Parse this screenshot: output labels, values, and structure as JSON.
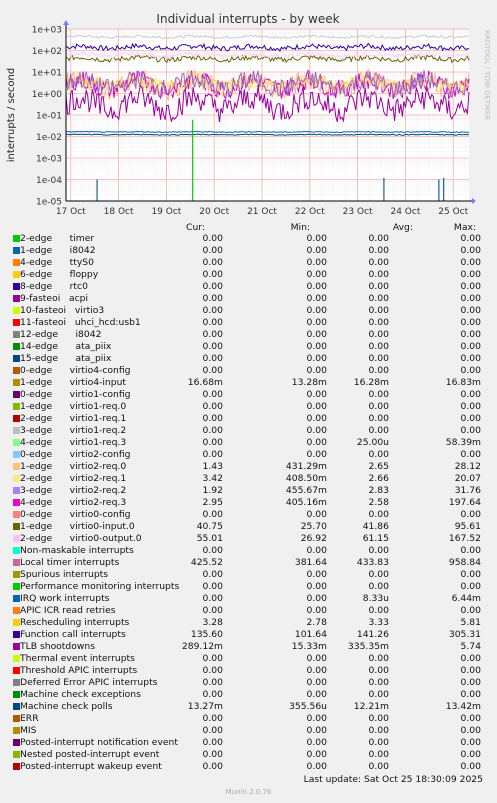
{
  "chart_data": {
    "type": "line",
    "title": "Individual interrupts - by week",
    "ylabel": "interrupts / second",
    "side_label": "RRDTOOL / TOBI OETIKER",
    "yscale": "log",
    "ylim": [
      1e-05,
      1000
    ],
    "yticks": [
      "1e-05",
      "1e-04",
      "1e-03",
      "1e-02",
      "1e-01",
      "1e+00",
      "1e+01",
      "1e+02",
      "1e+03"
    ],
    "xticks": [
      "17 Oct",
      "18 Oct",
      "19 Oct",
      "20 Oct",
      "21 Oct",
      "22 Oct",
      "23 Oct",
      "24 Oct",
      "25 Oct"
    ],
    "xlim_days": [
      16.9,
      25.33
    ],
    "series": [
      {
        "name": "Function call interrupts",
        "level": 141,
        "noise": 0.12,
        "color": "#330099"
      },
      {
        "name": "Local timer interrupts",
        "level": 434,
        "noise": 0.06,
        "color": "#CCCCCC"
      },
      {
        "name": "virtio0-input.0",
        "level": 42,
        "noise": 0.12,
        "color": "#666600"
      },
      {
        "name": "virtio0-output.0",
        "level": 61,
        "noise": 0.1,
        "color": "#FFCCFF"
      },
      {
        "name": "Rescheduling interrupts",
        "level": 3.3,
        "noise": 0.15,
        "color": "#FFCC00"
      },
      {
        "name": "virtio2-req.0",
        "level": 2.6,
        "noise": 0.5,
        "color": "#FFB080"
      },
      {
        "name": "virtio2-req.3",
        "level": 2.6,
        "noise": 0.45,
        "color": "#CC00CC"
      },
      {
        "name": "virtio2-req.1",
        "level": 2.7,
        "noise": 0.4,
        "color": "#FFE680"
      },
      {
        "name": "virtio2-req.2",
        "level": 2.8,
        "noise": 0.45,
        "color": "#9966CC"
      },
      {
        "name": "TLB shootdowns",
        "level": 0.34,
        "noise": 0.6,
        "color": "#990099"
      },
      {
        "name": "virtio4-input",
        "level": 0.0163,
        "noise": 0.02,
        "color": "#0066B3"
      },
      {
        "name": "Machine check polls",
        "level": 0.0122,
        "noise": 0.02,
        "color": "#004466"
      }
    ],
    "spikes": [
      {
        "day": 17.55,
        "value": 0.0001,
        "color": "#1F5F8F"
      },
      {
        "day": 23.55,
        "value": 0.00012,
        "color": "#1F5F8F"
      },
      {
        "day": 24.7,
        "value": 0.0001,
        "color": "#1F5F8F"
      },
      {
        "day": 24.8,
        "value": 0.00012,
        "color": "#1F5F8F"
      },
      {
        "day": 19.55,
        "value": 0.06,
        "color": "#00CC00"
      }
    ],
    "legend_placement": "bottom"
  },
  "legend": {
    "headers": {
      "cur": "Cur:",
      "min": "Min:",
      "avg": "Avg:",
      "max": "Max:"
    },
    "rows": [
      {
        "label": "2-edge      timer",
        "color": "#00CC00",
        "cur": "0.00",
        "min": "0.00",
        "avg": "0.00",
        "max": "0.00"
      },
      {
        "label": "1-edge      i8042",
        "color": "#0066B3",
        "cur": "0.00",
        "min": "0.00",
        "avg": "0.00",
        "max": "0.00"
      },
      {
        "label": "4-edge      ttyS0",
        "color": "#FF8000",
        "cur": "0.00",
        "min": "0.00",
        "avg": "0.00",
        "max": "0.00"
      },
      {
        "label": "6-edge      floppy",
        "color": "#FFCC00",
        "cur": "0.00",
        "min": "0.00",
        "avg": "0.00",
        "max": "0.00"
      },
      {
        "label": "8-edge      rtc0",
        "color": "#330099",
        "cur": "0.00",
        "min": "0.00",
        "avg": "0.00",
        "max": "0.00"
      },
      {
        "label": "9-fasteoi   acpi",
        "color": "#990099",
        "cur": "0.00",
        "min": "0.00",
        "avg": "0.00",
        "max": "0.00"
      },
      {
        "label": "10-fasteoi   virtio3",
        "color": "#CCFF00",
        "cur": "0.00",
        "min": "0.00",
        "avg": "0.00",
        "max": "0.00"
      },
      {
        "label": "11-fasteoi   uhci_hcd:usb1",
        "color": "#FF0000",
        "cur": "0.00",
        "min": "0.00",
        "avg": "0.00",
        "max": "0.00"
      },
      {
        "label": "12-edge      i8042",
        "color": "#808080",
        "cur": "0.00",
        "min": "0.00",
        "avg": "0.00",
        "max": "0.00"
      },
      {
        "label": "14-edge      ata_piix",
        "color": "#008F00",
        "cur": "0.00",
        "min": "0.00",
        "avg": "0.00",
        "max": "0.00"
      },
      {
        "label": "15-edge      ata_piix",
        "color": "#00487D",
        "cur": "0.00",
        "min": "0.00",
        "avg": "0.00",
        "max": "0.00"
      },
      {
        "label": "0-edge      virtio4-config",
        "color": "#B35A00",
        "cur": "0.00",
        "min": "0.00",
        "avg": "0.00",
        "max": "0.00"
      },
      {
        "label": "1-edge      virtio4-input",
        "color": "#B38F00",
        "cur": "16.68m",
        "min": "13.28m",
        "avg": "16.28m",
        "max": "16.83m"
      },
      {
        "label": "0-edge      virtio1-config",
        "color": "#6B006B",
        "cur": "0.00",
        "min": "0.00",
        "avg": "0.00",
        "max": "0.00"
      },
      {
        "label": "1-edge      virtio1-req.0",
        "color": "#8FB300",
        "cur": "0.00",
        "min": "0.00",
        "avg": "0.00",
        "max": "0.00"
      },
      {
        "label": "2-edge      virtio1-req.1",
        "color": "#B30000",
        "cur": "0.00",
        "min": "0.00",
        "avg": "0.00",
        "max": "0.00"
      },
      {
        "label": "3-edge      virtio1-req.2",
        "color": "#BEBEBE",
        "cur": "0.00",
        "min": "0.00",
        "avg": "0.00",
        "max": "0.00"
      },
      {
        "label": "4-edge      virtio1-req.3",
        "color": "#80FF80",
        "cur": "0.00",
        "min": "0.00",
        "avg": "25.00u",
        "max": "58.39m"
      },
      {
        "label": "0-edge      virtio2-config",
        "color": "#80C9FF",
        "cur": "0.00",
        "min": "0.00",
        "avg": "0.00",
        "max": "0.00"
      },
      {
        "label": "1-edge      virtio2-req.0",
        "color": "#FFC080",
        "cur": "1.43",
        "min": "431.29m",
        "avg": "2.65",
        "max": "28.12"
      },
      {
        "label": "2-edge      virtio2-req.1",
        "color": "#FFE680",
        "cur": "3.42",
        "min": "408.50m",
        "avg": "2.66",
        "max": "20.07"
      },
      {
        "label": "3-edge      virtio2-req.2",
        "color": "#AA80FF",
        "cur": "1.92",
        "min": "455.67m",
        "avg": "2.83",
        "max": "31.76"
      },
      {
        "label": "4-edge      virtio2-req.3",
        "color": "#EE00CC",
        "cur": "2.95",
        "min": "405.16m",
        "avg": "2.58",
        "max": "197.64"
      },
      {
        "label": "0-edge      virtio0-config",
        "color": "#FF8080",
        "cur": "0.00",
        "min": "0.00",
        "avg": "0.00",
        "max": "0.00"
      },
      {
        "label": "1-edge      virtio0-input.0",
        "color": "#666600",
        "cur": "40.75",
        "min": "25.70",
        "avg": "41.86",
        "max": "95.61"
      },
      {
        "label": "2-edge      virtio0-output.0",
        "color": "#FFBFFF",
        "cur": "55.01",
        "min": "26.92",
        "avg": "61.15",
        "max": "167.52"
      },
      {
        "label": "Non-maskable interrupts",
        "color": "#00FFCC",
        "cur": "0.00",
        "min": "0.00",
        "avg": "0.00",
        "max": "0.00"
      },
      {
        "label": "Local timer interrupts",
        "color": "#CC6699",
        "cur": "425.52",
        "min": "381.64",
        "avg": "433.83",
        "max": "958.84"
      },
      {
        "label": "Spurious interrupts",
        "color": "#999900",
        "cur": "0.00",
        "min": "0.00",
        "avg": "0.00",
        "max": "0.00"
      },
      {
        "label": "Performance monitoring interrupts",
        "color": "#00CC00",
        "cur": "0.00",
        "min": "0.00",
        "avg": "0.00",
        "max": "0.00"
      },
      {
        "label": "IRQ work interrupts",
        "color": "#0066B3",
        "cur": "0.00",
        "min": "0.00",
        "avg": "8.33u",
        "max": "6.44m"
      },
      {
        "label": "APIC ICR read retries",
        "color": "#FF8000",
        "cur": "0.00",
        "min": "0.00",
        "avg": "0.00",
        "max": "0.00"
      },
      {
        "label": "Rescheduling interrupts",
        "color": "#FFCC00",
        "cur": "3.28",
        "min": "2.78",
        "avg": "3.33",
        "max": "5.81"
      },
      {
        "label": "Function call interrupts",
        "color": "#330099",
        "cur": "135.60",
        "min": "101.64",
        "avg": "141.26",
        "max": "305.31"
      },
      {
        "label": "TLB shootdowns",
        "color": "#990099",
        "cur": "289.12m",
        "min": "15.33m",
        "avg": "335.35m",
        "max": "5.74"
      },
      {
        "label": "Thermal event interrupts",
        "color": "#CCFF00",
        "cur": "0.00",
        "min": "0.00",
        "avg": "0.00",
        "max": "0.00"
      },
      {
        "label": "Threshold APIC interrupts",
        "color": "#FF0000",
        "cur": "0.00",
        "min": "0.00",
        "avg": "0.00",
        "max": "0.00"
      },
      {
        "label": "Deferred Error APIC interrupts",
        "color": "#808080",
        "cur": "0.00",
        "min": "0.00",
        "avg": "0.00",
        "max": "0.00"
      },
      {
        "label": "Machine check exceptions",
        "color": "#008F00",
        "cur": "0.00",
        "min": "0.00",
        "avg": "0.00",
        "max": "0.00"
      },
      {
        "label": "Machine check polls",
        "color": "#00487D",
        "cur": "13.27m",
        "min": "355.56u",
        "avg": "12.21m",
        "max": "13.42m"
      },
      {
        "label": "ERR",
        "color": "#B35A00",
        "cur": "0.00",
        "min": "0.00",
        "avg": "0.00",
        "max": "0.00"
      },
      {
        "label": "MIS",
        "color": "#B38F00",
        "cur": "0.00",
        "min": "0.00",
        "avg": "0.00",
        "max": "0.00"
      },
      {
        "label": "Posted-interrupt notification event",
        "color": "#6B006B",
        "cur": "0.00",
        "min": "0.00",
        "avg": "0.00",
        "max": "0.00"
      },
      {
        "label": "Nested posted-interrupt event",
        "color": "#8FB300",
        "cur": "0.00",
        "min": "0.00",
        "avg": "0.00",
        "max": "0.00"
      },
      {
        "label": "Posted-interrupt wakeup event",
        "color": "#B30000",
        "cur": "0.00",
        "min": "0.00",
        "avg": "0.00",
        "max": "0.00"
      }
    ]
  },
  "footer": {
    "last_update": "Last update: Sat Oct 25 18:30:09 2025",
    "generator": "Munin 2.0.76"
  }
}
